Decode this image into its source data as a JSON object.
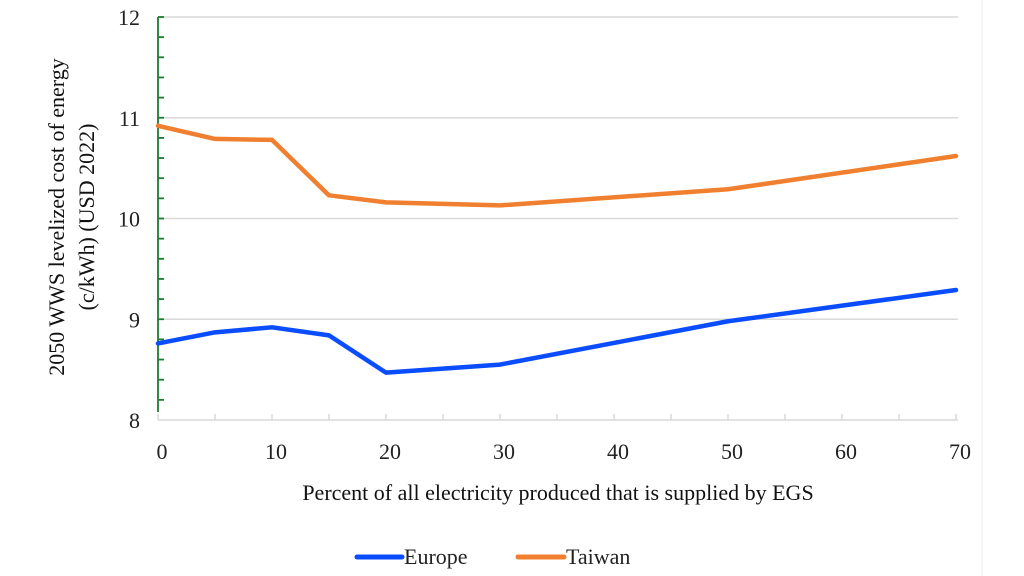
{
  "chart_data": {
    "type": "line",
    "title": "",
    "xlabel": "Percent of all electricity produced that is supplied by EGS",
    "ylabel_lines": [
      "2050 WWS levelized cost of energy",
      "(c/kWh) (USD 2022)"
    ],
    "xlim": [
      0,
      70
    ],
    "ylim": [
      8,
      12
    ],
    "x_ticks": [
      "0",
      "10",
      "20",
      "30",
      "40",
      "50",
      "60",
      "70"
    ],
    "y_ticks": [
      "8",
      "9",
      "10",
      "11",
      "12"
    ],
    "grid": "horizontal",
    "legend_position": "bottom",
    "x": [
      0,
      5,
      10,
      15,
      20,
      30,
      50,
      70
    ],
    "series": [
      {
        "name": "Europe",
        "color": "#0a4cff",
        "values": [
          8.76,
          8.87,
          8.92,
          8.84,
          8.47,
          8.55,
          8.98,
          9.29
        ]
      },
      {
        "name": "Taiwan",
        "color": "#f0802f",
        "values": [
          10.92,
          10.79,
          10.78,
          10.23,
          10.16,
          10.13,
          10.29,
          10.62
        ]
      }
    ],
    "axis_color": "#1e7a34",
    "grid_color": "#d9d9d9"
  }
}
